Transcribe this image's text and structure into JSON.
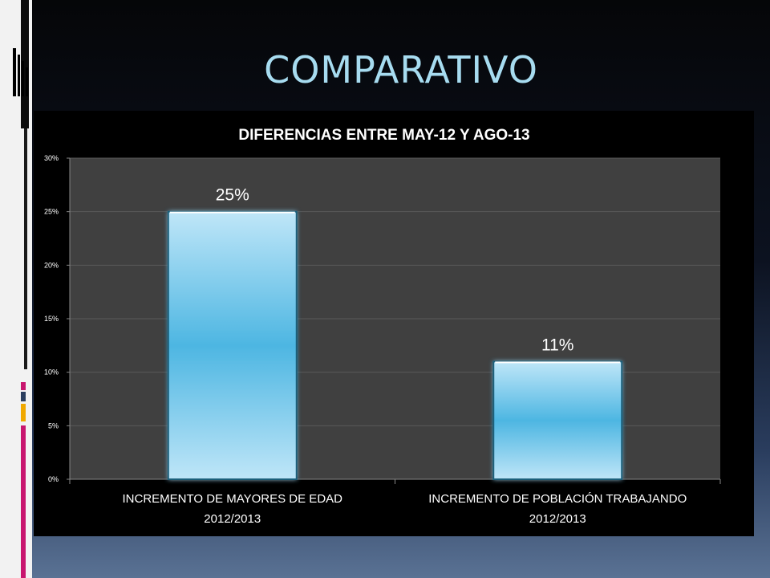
{
  "slide": {
    "title": "COMPARATIVO"
  },
  "chart_data": {
    "type": "bar",
    "title": "DIFERENCIAS ENTRE MAY-12 Y AGO-13",
    "categories": [
      [
        "INCREMENTO DE MAYORES DE EDAD",
        "2012/2013"
      ],
      [
        "INCREMENTO DE POBLACIÓN TRABAJANDO",
        "2012/2013"
      ]
    ],
    "values": [
      25,
      11
    ],
    "data_labels": [
      "25%",
      "11%"
    ],
    "y_ticks": [
      "0%",
      "5%",
      "10%",
      "15%",
      "20%",
      "25%",
      "30%"
    ],
    "ylim": [
      0,
      30
    ],
    "xlabel": "",
    "ylabel": "",
    "grid": true,
    "colors": {
      "bar_top": "#bfe6f8",
      "bar_mid": "#4db6e2",
      "plot_bg": "#404040",
      "grid": "#5a5a5a"
    }
  }
}
